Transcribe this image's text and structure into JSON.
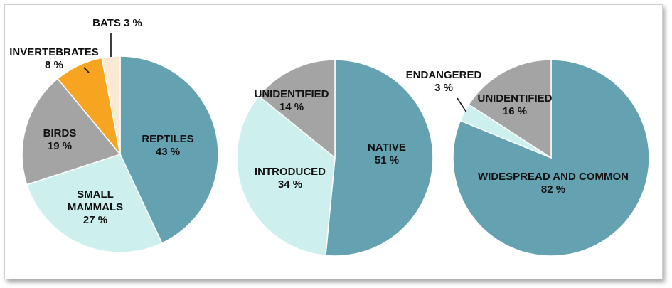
{
  "colors": {
    "teal": "#64a2b2",
    "light_teal": "#cdf0ee",
    "gray": "#a4a4a4",
    "orange": "#f7a421",
    "cream": "#fbe9d3",
    "outline": "#ffffff"
  },
  "chart_data": [
    {
      "type": "pie",
      "start": "12 o'clock, clockwise",
      "slices": [
        {
          "label": "REPTILES",
          "value": 43,
          "value_text": "43 %",
          "color": "#64a2b2"
        },
        {
          "label": "SMALL MAMMALS",
          "value": 27,
          "value_text": "27 %",
          "color": "#cdf0ee"
        },
        {
          "label": "BIRDS",
          "value": 19,
          "value_text": "19 %",
          "color": "#a4a4a4"
        },
        {
          "label": "INVERTEBRATES",
          "value": 8,
          "value_text": "8 %",
          "color": "#f7a421"
        },
        {
          "label": "BATS",
          "value": 3,
          "value_text": "3 %",
          "color": "#fbe9d3"
        }
      ]
    },
    {
      "type": "pie",
      "start": "12 o'clock, clockwise",
      "slices": [
        {
          "label": "NATIVE",
          "value": 51,
          "value_text": "51 %",
          "color": "#64a2b2"
        },
        {
          "label": "INTRODUCED",
          "value": 34,
          "value_text": "34 %",
          "color": "#cdf0ee"
        },
        {
          "label": "UNIDENTIFIED",
          "value": 14,
          "value_text": "14 %",
          "color": "#a4a4a4"
        }
      ]
    },
    {
      "type": "pie",
      "start": "12 o'clock, clockwise",
      "slices": [
        {
          "label": "WIDESPREAD AND COMMON",
          "value": 82,
          "value_text": "82 %",
          "color": "#64a2b2"
        },
        {
          "label": "ENDANGERED",
          "value": 3,
          "value_text": "3 %",
          "color": "#cdf0ee"
        },
        {
          "label": "UNIDENTIFIED",
          "value": 16,
          "value_text": "16 %",
          "color": "#a4a4a4"
        }
      ]
    }
  ]
}
